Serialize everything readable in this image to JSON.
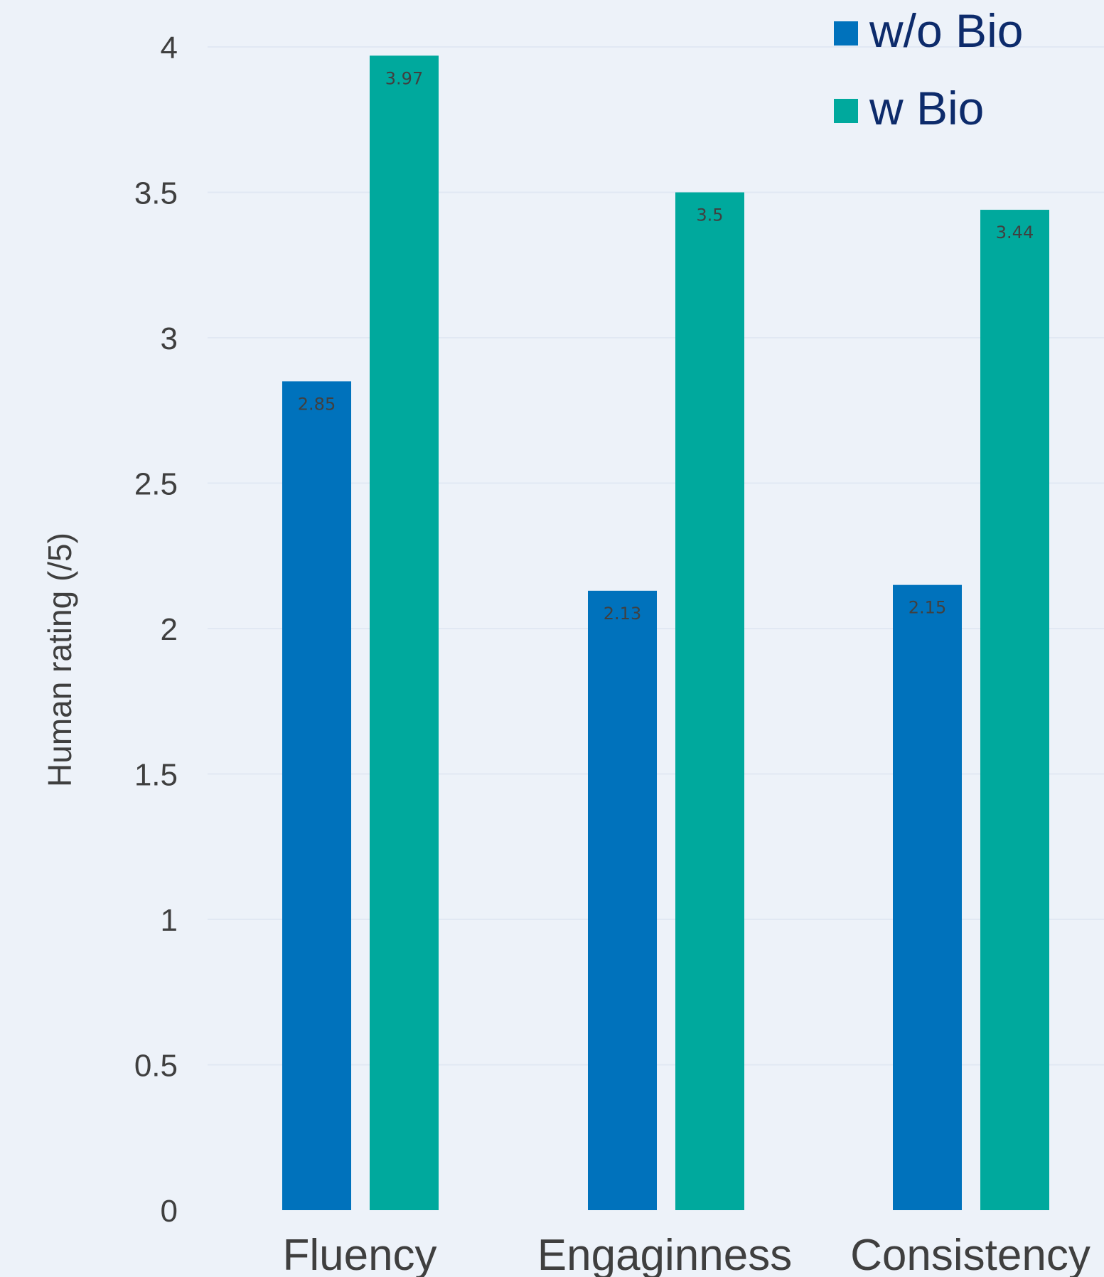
{
  "chart_data": {
    "type": "bar",
    "title": "",
    "xlabel": "",
    "ylabel": "Human rating (/5)",
    "ylim": [
      0,
      4
    ],
    "yticks": [
      0,
      0.5,
      1,
      1.5,
      2,
      2.5,
      3,
      3.5,
      4
    ],
    "grid": true,
    "legend_position": "top-right",
    "categories": [
      "Fluency",
      "Engaginness",
      "Consistency"
    ],
    "series": [
      {
        "name": "w/o Bio",
        "color": "#0072bc",
        "values": [
          2.85,
          2.13,
          2.15
        ],
        "labels": [
          "2.85",
          "2.13",
          "2.15"
        ]
      },
      {
        "name": "w Bio",
        "color": "#00a99d",
        "values": [
          3.97,
          3.5,
          3.44
        ],
        "labels": [
          "3.97",
          "3.5",
          "3.44"
        ]
      }
    ]
  }
}
